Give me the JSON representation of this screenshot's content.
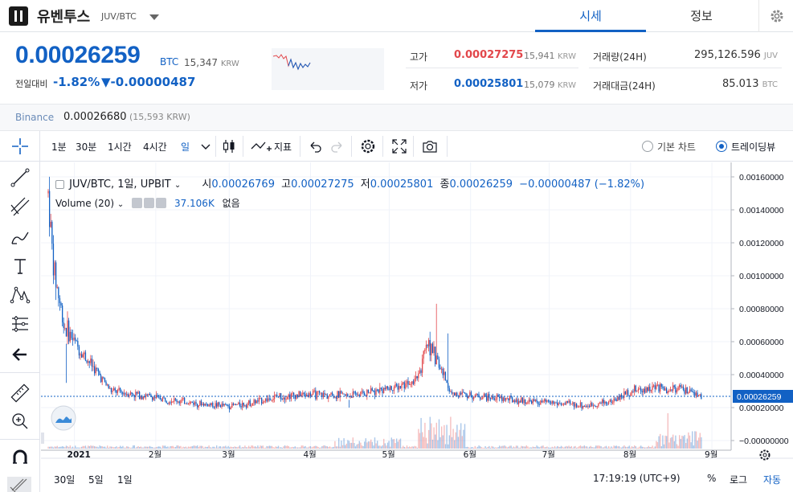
{
  "header": {
    "coin_name": "유벤투스",
    "pair": "JUV/BTC",
    "tabs": [
      "시세",
      "정보"
    ]
  },
  "summary": {
    "price": "0.00026259",
    "price_unit": "BTC",
    "price_krw": "15,347",
    "krw_unit": "KRW",
    "change_label": "전일대비",
    "change_rate": "-1.82%",
    "change_amount": "▼-0.00000487",
    "high_label": "고가",
    "high_value": "0.00027275",
    "high_krw": "15,941",
    "low_label": "저가",
    "low_value": "0.00025801",
    "low_krw": "15,079",
    "volume_label": "거래량(24H)",
    "volume_value": "295,126.596",
    "volume_unit": "JUV",
    "amount_label": "거래대금(24H)",
    "amount_value": "85.013",
    "amount_unit": "BTC"
  },
  "binance": {
    "label": "Binance",
    "value": "0.00026680",
    "krw": "(15,593 KRW)"
  },
  "toolbar": {
    "intervals": [
      "1분",
      "30분",
      "1시간",
      "4시간",
      "일"
    ],
    "indicator_label": "지표",
    "basic_chart_label": "기본 차트",
    "tradingview_label": "트레이딩뷰"
  },
  "legend": {
    "symbol": "JUV/BTC, 1일, UPBIT",
    "open_label": "시",
    "open": "0.00026769",
    "high_label": "고",
    "high": "0.00027275",
    "low_label": "저",
    "low": "0.00025801",
    "close_label": "종",
    "close": "0.00026259",
    "change": "−0.00000487 (−1.82%)",
    "volume_label": "Volume (20)",
    "volume_value": "37.106K",
    "volume_ma": "없음"
  },
  "footer": {
    "ranges": [
      "30일",
      "5일",
      "1일"
    ],
    "time": "17:19:19 (UTC+9)",
    "percent": "%",
    "log": "로그",
    "auto": "자동"
  },
  "colors": {
    "up": "#e2474b",
    "down": "#1261c4",
    "accent": "#1261c4"
  },
  "chart_data": {
    "type": "candlestick",
    "title": "JUV/BTC, 1일, UPBIT",
    "x_labels": [
      "2021",
      "2월",
      "3월",
      "4월",
      "5월",
      "6월",
      "7월",
      "8월",
      "9월"
    ],
    "y_ticks": [
      "0.00160000",
      "0.00140000",
      "0.00120000",
      "0.00100000",
      "0.00080000",
      "0.00060000",
      "0.00040000",
      "0.00020000",
      "−0.00000000"
    ],
    "ylim": [
      0,
      0.0016
    ],
    "last_price_label": "0.00026259",
    "series_close_approx": [
      {
        "x": "2020-12-22",
        "y": 0.0015
      },
      {
        "x": "2020-12-24",
        "y": 0.00105
      },
      {
        "x": "2020-12-28",
        "y": 0.0007
      },
      {
        "x": "2021-01-03",
        "y": 0.00055
      },
      {
        "x": "2021-01-08",
        "y": 0.00045
      },
      {
        "x": "2021-01-15",
        "y": 0.0003
      },
      {
        "x": "2021-01-25",
        "y": 0.00028
      },
      {
        "x": "2021-02-01",
        "y": 0.00026
      },
      {
        "x": "2021-02-10",
        "y": 0.00024
      },
      {
        "x": "2021-02-20",
        "y": 0.00022
      },
      {
        "x": "2021-03-01",
        "y": 0.00021
      },
      {
        "x": "2021-03-10",
        "y": 0.00023
      },
      {
        "x": "2021-03-20",
        "y": 0.00027
      },
      {
        "x": "2021-04-01",
        "y": 0.00028
      },
      {
        "x": "2021-04-15",
        "y": 0.00027
      },
      {
        "x": "2021-04-25",
        "y": 0.0003
      },
      {
        "x": "2021-05-05",
        "y": 0.00033
      },
      {
        "x": "2021-05-12",
        "y": 0.0004
      },
      {
        "x": "2021-05-16",
        "y": 0.0006
      },
      {
        "x": "2021-05-20",
        "y": 0.00045
      },
      {
        "x": "2021-05-25",
        "y": 0.00028
      },
      {
        "x": "2021-06-05",
        "y": 0.00027
      },
      {
        "x": "2021-06-20",
        "y": 0.00024
      },
      {
        "x": "2021-07-01",
        "y": 0.00023
      },
      {
        "x": "2021-07-15",
        "y": 0.00021
      },
      {
        "x": "2021-07-25",
        "y": 0.00024
      },
      {
        "x": "2021-08-01",
        "y": 0.0003
      },
      {
        "x": "2021-08-10",
        "y": 0.00032
      },
      {
        "x": "2021-08-20",
        "y": 0.00031
      },
      {
        "x": "2021-08-28",
        "y": 0.000263
      }
    ]
  }
}
